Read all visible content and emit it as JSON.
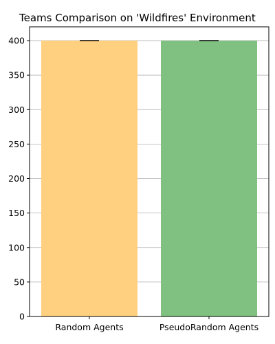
{
  "chart_data": {
    "type": "bar",
    "title": "Teams Comparison on 'Wildfires' Environment",
    "xlabel": "",
    "ylabel": "",
    "categories": [
      "Random Agents",
      "PseudoRandom Agents"
    ],
    "values": [
      400,
      400
    ],
    "errors": [
      0,
      0
    ],
    "colors": [
      "#ffd07f",
      "#80c080"
    ],
    "ylim": [
      0,
      420
    ],
    "yticks": [
      "0",
      "50",
      "100",
      "150",
      "200",
      "250",
      "300",
      "350",
      "400"
    ],
    "grid": "y",
    "legend": "none"
  }
}
